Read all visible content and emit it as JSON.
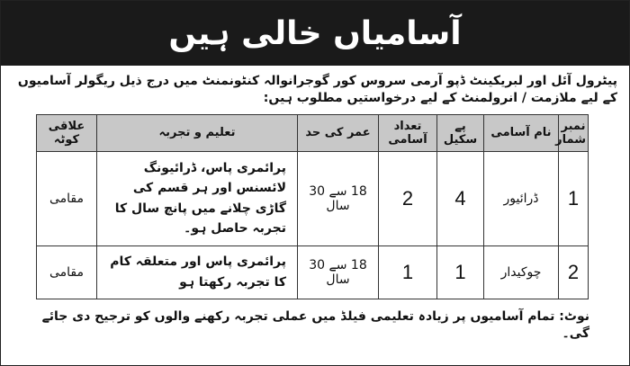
{
  "title": "آسامیاں خالی ہیں",
  "intro": "پیٹرول آئل اور لبریکینٹ ڈپو آرمی سروس کور گوجرانوالہ کنٹونمنٹ میں درج ذیل ریگولر آسامیوں کے لیے ملازمت / انرولمنٹ کے لیے درخواستیں مطلوب ہیں:",
  "table": {
    "headers": [
      "نمبر شمار",
      "نام آسامی",
      "پے سکیل",
      "تعداد آسامی",
      "عمر کی حد",
      "تعلیم و تجربہ",
      "علاقی کوٹہ"
    ],
    "rows": [
      {
        "no": "1",
        "post": "ڈرائیور",
        "scale": "4",
        "count": "2",
        "age": "18 سے 30 سال",
        "education": "پرائمری پاس، ڈرائیونگ لائسنس اور ہر قسم کی گاڑی چلانے میں پانچ سال کا تجربہ حاصل ہو۔",
        "quota": "مقامی"
      },
      {
        "no": "2",
        "post": "چوکیدار",
        "scale": "1",
        "count": "1",
        "age": "18 سے 30 سال",
        "education": "پرائمری پاس اور متعلقہ کام کا تجربہ رکھتا ہو",
        "quota": "مقامی"
      }
    ]
  },
  "note": "نوٹ: تمام آسامیوں پر زیادہ تعلیمی فیلڈ میں عملی تجربہ رکھنے والوں کو ترجیح دی جائے گی۔"
}
